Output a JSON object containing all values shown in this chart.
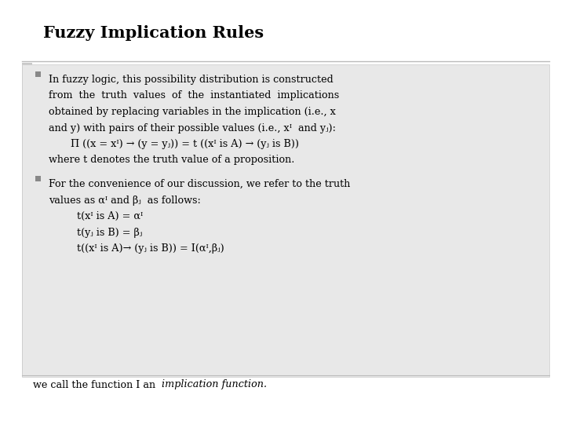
{
  "title": "Fuzzy Implication Rules",
  "bg_color": "#f0f0f0",
  "slide_bg": "#ffffff",
  "content_bg": "#e8e8e8",
  "left_bar_color": "#c8c8c8",
  "title_color": "#000000",
  "text_color": "#000000",
  "bullet_color": "#888888",
  "bullet1_line1": "In fuzzy logic, this possibility distribution is constructed",
  "bullet1_line2": "from  the  truth  values  of  the  instantiated  implications",
  "bullet1_line3": "obtained by replacing variables in the implication (i.e., x",
  "bullet1_line4": "and y) with pairs of their possible values (i.e., xᴵ  and yⱼ):",
  "formula1": "  Π ((x = xᴵ) → (y = yⱼ)) = t ((xᴵ is A) → (yⱼ is B))",
  "formula1_note": "where t denotes the truth value of a proposition.",
  "bullet2_line1": "For the convenience of our discussion, we refer to the truth",
  "bullet2_line2": "values as αᴵ and βⱼ  as follows:",
  "formula2a": "    t(xᴵ is A) = αᴵ",
  "formula2b": "    t(yⱼ is B) = βⱼ",
  "formula2c": "    t((xᴵ is A)→ (yⱼ is B)) = I(αᴵ,βⱼ)",
  "footer_normal": "we call the function I an ",
  "footer_italic": "implication function."
}
